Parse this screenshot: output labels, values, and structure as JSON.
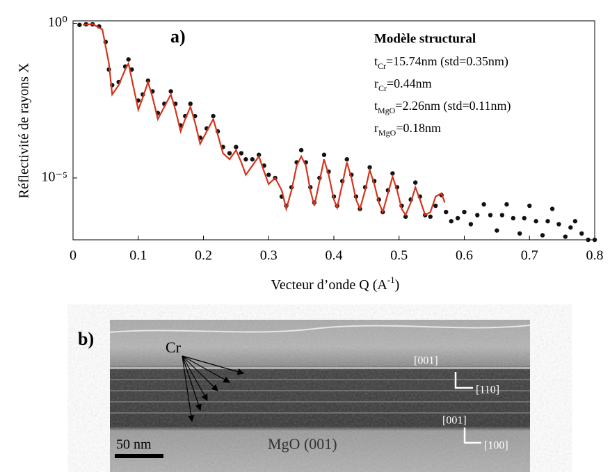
{
  "chart_data": {
    "type": "scatter-line",
    "panel_label": "a)",
    "xlabel": {
      "text": "Vecteur d’onde Q (A",
      "sup": "-1",
      "after": ")"
    },
    "ylabel": "Réflectivité de rayons  X",
    "annotation_title": "Modèle structural",
    "annotations": [
      {
        "text": "t",
        "sub": "Cr",
        "after": "=15.74nm (std=0.35nm)"
      },
      {
        "text": "r",
        "sub": "Cr",
        "after": "=0.44nm"
      },
      {
        "text": "t",
        "sub": "MgO",
        "after": "=2.26nm (std=0.11nm)"
      },
      {
        "text": "r",
        "sub": "MgO",
        "after": "=0.18nm"
      }
    ],
    "xlim": [
      0,
      0.8
    ],
    "xticks": [
      0,
      0.1,
      0.2,
      0.3,
      0.4,
      0.5,
      0.6,
      0.7,
      0.8
    ],
    "yscale": "log",
    "ylim": [
      1e-07,
      1.2
    ],
    "yticks": [
      {
        "value": 1,
        "label": "10⁰"
      },
      {
        "value": 1e-05,
        "label": "10⁻⁵"
      }
    ],
    "series": [
      {
        "color": "#111111",
        "style": "dots",
        "x": [
          0.01,
          0.02,
          0.03,
          0.04,
          0.05,
          0.055,
          0.06,
          0.07,
          0.08,
          0.085,
          0.09,
          0.1,
          0.107,
          0.115,
          0.122,
          0.13,
          0.14,
          0.15,
          0.157,
          0.165,
          0.172,
          0.18,
          0.187,
          0.195,
          0.205,
          0.215,
          0.222,
          0.23,
          0.24,
          0.25,
          0.258,
          0.265,
          0.275,
          0.285,
          0.293,
          0.3,
          0.31,
          0.32,
          0.327,
          0.335,
          0.343,
          0.35,
          0.357,
          0.364,
          0.37,
          0.378,
          0.385,
          0.392,
          0.4,
          0.405,
          0.413,
          0.42,
          0.427,
          0.434,
          0.44,
          0.448,
          0.455,
          0.462,
          0.469,
          0.475,
          0.483,
          0.49,
          0.497,
          0.504,
          0.51,
          0.518,
          0.525,
          0.532,
          0.54,
          0.548,
          0.556,
          0.565,
          0.572,
          0.58,
          0.59,
          0.6,
          0.61,
          0.62,
          0.63,
          0.64,
          0.65,
          0.658,
          0.665,
          0.675,
          0.685,
          0.692,
          0.7,
          0.71,
          0.72,
          0.728,
          0.735,
          0.745,
          0.755,
          0.763,
          0.77,
          0.78,
          0.79,
          0.8
        ],
        "values": [
          0.89,
          0.93,
          0.93,
          0.79,
          0.25,
          0.032,
          0.01,
          0.0126,
          0.04,
          0.068,
          0.032,
          0.0032,
          0.005,
          0.014,
          0.0063,
          0.00126,
          0.0025,
          0.0063,
          0.0025,
          0.0005,
          0.001,
          0.0025,
          0.001,
          0.0002,
          0.0004,
          0.001,
          0.00032,
          0.0001,
          6.3e-05,
          0.0001,
          6.3e-05,
          4e-05,
          4e-05,
          5.6e-05,
          2.5e-05,
          1.26e-05,
          1e-05,
          2.5e-06,
          1.26e-06,
          5e-06,
          3.2e-05,
          7.9e-05,
          3.2e-05,
          5e-06,
          1.6e-06,
          1e-05,
          5.6e-05,
          1.6e-05,
          2.5e-06,
          1.26e-06,
          7.9e-06,
          4e-05,
          1.26e-05,
          2.5e-06,
          1e-06,
          5e-06,
          2.2e-05,
          7.9e-06,
          2e-06,
          7.9e-07,
          4e-06,
          1.4e-05,
          5e-06,
          1.26e-06,
          5.6e-07,
          2e-06,
          7.1e-06,
          2.5e-06,
          6.3e-07,
          5.6e-07,
          1.26e-06,
          2.8e-06,
          7.9e-07,
          4e-07,
          5e-07,
          7.9e-07,
          3.2e-07,
          6.3e-07,
          1.4e-06,
          6.3e-07,
          2e-07,
          6.3e-07,
          1.4e-06,
          5e-07,
          1.6e-07,
          5e-07,
          1.26e-06,
          4e-07,
          1.4e-07,
          4e-07,
          1e-06,
          3.2e-07,
          1.26e-07,
          2.5e-07,
          4e-07,
          1.6e-07,
          1e-07,
          1e-07
        ]
      },
      {
        "color": "#d4341c",
        "style": "line",
        "x": [
          0.015,
          0.03,
          0.045,
          0.055,
          0.06,
          0.07,
          0.08,
          0.085,
          0.09,
          0.1,
          0.107,
          0.115,
          0.122,
          0.13,
          0.14,
          0.15,
          0.157,
          0.165,
          0.172,
          0.18,
          0.187,
          0.195,
          0.205,
          0.215,
          0.222,
          0.23,
          0.24,
          0.25,
          0.258,
          0.265,
          0.275,
          0.285,
          0.293,
          0.3,
          0.31,
          0.32,
          0.327,
          0.335,
          0.343,
          0.35,
          0.357,
          0.364,
          0.37,
          0.378,
          0.385,
          0.392,
          0.4,
          0.405,
          0.413,
          0.42,
          0.427,
          0.434,
          0.44,
          0.448,
          0.455,
          0.462,
          0.469,
          0.475,
          0.483,
          0.49,
          0.497,
          0.504,
          0.51,
          0.518,
          0.525,
          0.532,
          0.54,
          0.548,
          0.556,
          0.565,
          0.57
        ],
        "values": [
          0.89,
          0.95,
          0.63,
          0.05,
          0.005,
          0.01,
          0.032,
          0.05,
          0.016,
          0.0016,
          0.004,
          0.0126,
          0.004,
          0.0008,
          0.002,
          0.005,
          0.0016,
          0.00032,
          0.0008,
          0.002,
          0.00063,
          0.000126,
          0.00032,
          0.0008,
          0.00025,
          6.3e-05,
          4e-05,
          7.9e-05,
          3.2e-05,
          1.26e-05,
          2.5e-05,
          5e-05,
          1.6e-05,
          6.3e-06,
          1e-05,
          4e-06,
          1e-06,
          4e-06,
          2.5e-05,
          5e-05,
          2.5e-05,
          4e-06,
          1.26e-06,
          7.9e-06,
          4e-05,
          1.26e-05,
          2e-06,
          1.1e-06,
          6.3e-06,
          3.2e-05,
          1e-05,
          2e-06,
          1e-06,
          4e-06,
          1.8e-05,
          6.3e-06,
          1.6e-06,
          7.9e-07,
          3.2e-06,
          1.1e-05,
          4e-06,
          1e-06,
          6.3e-07,
          1.6e-06,
          5e-06,
          2e-06,
          6.3e-07,
          7.9e-07,
          2.5e-06,
          3.2e-06,
          1.6e-06
        ]
      }
    ]
  },
  "figure_b": {
    "panel_label": "b)",
    "layer_label": "Cr",
    "axis1_a": "[001]",
    "axis1_b": "[110]",
    "axis2_a": "[001]",
    "axis2_b": "[100]",
    "scale": "50 nm",
    "substrate": "MgO (001)"
  }
}
